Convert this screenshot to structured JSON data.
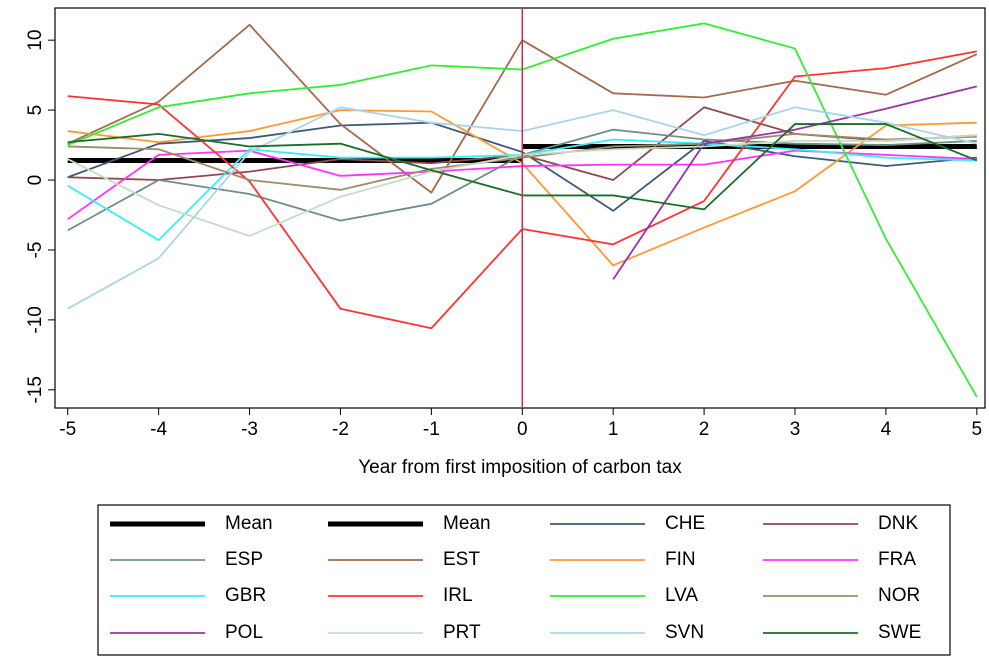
{
  "chart_data": {
    "type": "line",
    "x_label": "Year from first imposition of carbon tax",
    "x": [
      -5,
      -4,
      -3,
      -2,
      -1,
      0,
      1,
      2,
      3,
      4,
      5
    ],
    "xlim": [
      -5.14,
      5.09
    ],
    "xticks": [
      -5,
      -4,
      -3,
      -2,
      -1,
      0,
      1,
      2,
      3,
      4,
      5
    ],
    "ylim": [
      -16.3,
      12.3
    ],
    "yticks": [
      -15,
      -10,
      -5,
      0,
      5,
      10
    ],
    "vline": {
      "x": 0,
      "color": "#c0305a"
    },
    "series": [
      {
        "name": "Mean",
        "color": "#000000",
        "linewidth": 5,
        "values": [
          1.4,
          1.4,
          1.4,
          1.4,
          1.4,
          1.4,
          null,
          null,
          null,
          null,
          null
        ]
      },
      {
        "name": "Mean",
        "color": "#000000",
        "linewidth": 5,
        "values": [
          null,
          null,
          null,
          null,
          null,
          2.4,
          2.4,
          2.4,
          2.4,
          2.4,
          2.4
        ]
      },
      {
        "name": "CHE",
        "color": "#3d5a78",
        "values": [
          0.2,
          2.6,
          3.0,
          3.9,
          4.1,
          2.0,
          -2.2,
          2.8,
          1.7,
          1.0,
          1.6
        ]
      },
      {
        "name": "DNK",
        "color": "#8e4a4e",
        "values": [
          0.2,
          0,
          0.6,
          1.5,
          1.2,
          1.8,
          0,
          5.2,
          3.3,
          2.8,
          3.2
        ]
      },
      {
        "name": "ESP",
        "color": "#6f8e88",
        "values": [
          -3.6,
          0,
          -1,
          -2.9,
          -1.7,
          1.8,
          3.6,
          2.9,
          2.6,
          2.5,
          2.8
        ]
      },
      {
        "name": "EST",
        "color": "#a36a4c",
        "values": [
          2.6,
          5.6,
          11.1,
          4,
          -0.9,
          10,
          6.2,
          5.9,
          7.1,
          6.1,
          9.0
        ]
      },
      {
        "name": "FIN",
        "color": "#ff9933",
        "values": [
          3.5,
          2.7,
          3.5,
          5,
          4.9,
          1.2,
          -6.1,
          -3.4,
          -0.8,
          3.9,
          4.1
        ]
      },
      {
        "name": "FRA",
        "color": "#ff33ff",
        "values": [
          -2.8,
          1.8,
          2.1,
          0.3,
          0.6,
          1,
          1.1,
          1.1,
          2.1,
          1.8,
          1.5
        ]
      },
      {
        "name": "GBR",
        "color": "#33eeff",
        "values": [
          -0.4,
          -4.3,
          2.2,
          1.6,
          1.6,
          1.8,
          2.9,
          2.6,
          2.2,
          1.6,
          1.4
        ]
      },
      {
        "name": "IRL",
        "color": "#ff3333",
        "values": [
          6.0,
          5.4,
          -0.1,
          -9.2,
          -10.6,
          -3.5,
          -4.6,
          -1.5,
          7.4,
          8.0,
          9.2
        ]
      },
      {
        "name": "LVA",
        "color": "#33ee33",
        "values": [
          2.5,
          5.2,
          6.2,
          6.8,
          8.2,
          7.9,
          10.1,
          11.2,
          9.4,
          -4.2,
          -15.5
        ]
      },
      {
        "name": "NOR",
        "color": "#9c8c6a",
        "values": [
          2.4,
          2.2,
          0,
          -0.7,
          0.8,
          1.6,
          2.4,
          2.6,
          3.3,
          2.9,
          3.1
        ]
      },
      {
        "name": "POL",
        "color": "#9933aa",
        "values": [
          null,
          null,
          null,
          null,
          null,
          null,
          -7.1,
          2.6,
          3.6,
          5.1,
          6.7
        ]
      },
      {
        "name": "PRT",
        "color": "#c4dcc4",
        "values": [
          1.5,
          -1.8,
          -4,
          -1.2,
          0.6,
          1.8,
          2.2,
          2.4,
          2.8,
          2.8,
          3.2
        ]
      },
      {
        "name": "SVN",
        "color": "#aad4e8",
        "values": [
          -9.2,
          -5.6,
          2.0,
          5.2,
          4.1,
          3.5,
          5.0,
          3.2,
          5.2,
          4.1,
          2.6
        ]
      },
      {
        "name": "SWE",
        "color": "#1a6e2a",
        "values": [
          2.7,
          3.3,
          2.4,
          2.6,
          0.7,
          -1.1,
          -1.1,
          -2.1,
          4.0,
          4.0,
          1.4
        ]
      }
    ]
  }
}
